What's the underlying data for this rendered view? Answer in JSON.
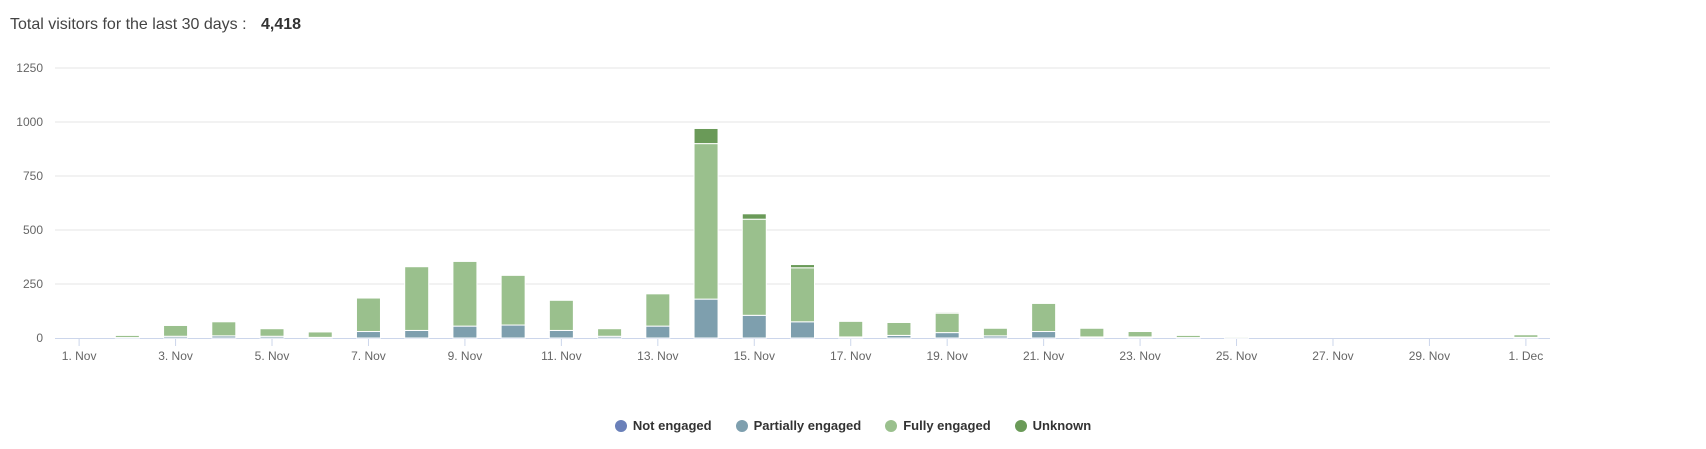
{
  "header": {
    "title": "Total visitors for the last 30 days :",
    "total": "4,418"
  },
  "colors": {
    "not_engaged": "#6a80b9",
    "partially_engaged": "#7e9fae",
    "fully_engaged": "#9ac08d",
    "unknown": "#6a9a58",
    "grid": "#e6e6e6",
    "axis": "#ccd6eb"
  },
  "chart_data": {
    "type": "bar",
    "stacked": true,
    "title": "Total visitors for the last 30 days : 4,418",
    "xlabel": "",
    "ylabel": "",
    "ylim": [
      0,
      1250
    ],
    "yticks": [
      0,
      250,
      500,
      750,
      1000,
      1250
    ],
    "grid": true,
    "legend_position": "bottom-center",
    "categories": [
      "1. Nov",
      "2. Nov",
      "3. Nov",
      "4. Nov",
      "5. Nov",
      "6. Nov",
      "7. Nov",
      "8. Nov",
      "9. Nov",
      "10. Nov",
      "11. Nov",
      "12. Nov",
      "13. Nov",
      "14. Nov",
      "15. Nov",
      "16. Nov",
      "17. Nov",
      "18. Nov",
      "19. Nov",
      "20. Nov",
      "21. Nov",
      "22. Nov",
      "23. Nov",
      "24. Nov",
      "25. Nov",
      "26. Nov",
      "27. Nov",
      "28. Nov",
      "29. Nov",
      "30. Nov",
      "1. Dec"
    ],
    "tick_labels": [
      "1. Nov",
      "3. Nov",
      "5. Nov",
      "7. Nov",
      "9. Nov",
      "11. Nov",
      "13. Nov",
      "15. Nov",
      "17. Nov",
      "19. Nov",
      "21. Nov",
      "23. Nov",
      "25. Nov",
      "27. Nov",
      "29. Nov",
      "1. Dec"
    ],
    "series": [
      {
        "name": "Not engaged",
        "color_key": "not_engaged",
        "values": [
          0,
          0,
          0,
          0,
          0,
          0,
          0,
          0,
          0,
          0,
          0,
          0,
          0,
          0,
          0,
          0,
          0,
          0,
          0,
          0,
          0,
          0,
          0,
          0,
          0,
          0,
          0,
          0,
          0,
          0,
          0
        ]
      },
      {
        "name": "Partially engaged",
        "color_key": "partially_engaged",
        "values": [
          0,
          2,
          8,
          10,
          8,
          3,
          30,
          35,
          55,
          60,
          35,
          8,
          55,
          180,
          105,
          75,
          5,
          12,
          25,
          10,
          30,
          5,
          5,
          2,
          1,
          0,
          0,
          0,
          0,
          0,
          3
        ]
      },
      {
        "name": "Fully engaged",
        "color_key": "fully_engaged",
        "values": [
          0,
          10,
          50,
          65,
          35,
          25,
          155,
          295,
          300,
          230,
          140,
          35,
          150,
          720,
          445,
          250,
          72,
          60,
          90,
          35,
          130,
          40,
          25,
          10,
          5,
          0,
          0,
          0,
          0,
          0,
          12
        ]
      },
      {
        "name": "Unknown",
        "color_key": "unknown",
        "values": [
          0,
          0,
          0,
          0,
          0,
          0,
          0,
          0,
          3,
          0,
          3,
          0,
          3,
          70,
          25,
          15,
          0,
          3,
          5,
          0,
          0,
          0,
          0,
          0,
          0,
          0,
          0,
          0,
          0,
          0,
          0
        ]
      }
    ]
  }
}
